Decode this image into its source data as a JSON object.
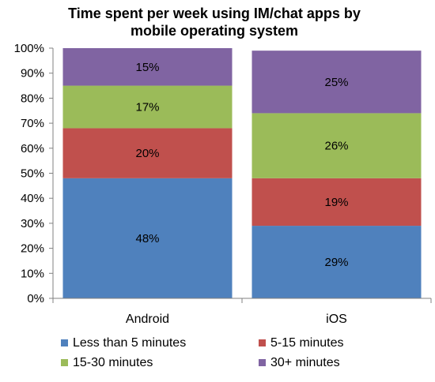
{
  "chart_data": {
    "type": "bar",
    "stacked": true,
    "title_lines": [
      "Time spent per week using IM/chat apps by",
      "mobile operating system"
    ],
    "categories": [
      "Android",
      "iOS"
    ],
    "y_tick_labels": [
      "0%",
      "10%",
      "20%",
      "30%",
      "40%",
      "50%",
      "60%",
      "70%",
      "80%",
      "90%",
      "100%"
    ],
    "ylim": [
      0,
      100
    ],
    "grid": false,
    "legend_position": "bottom",
    "series": [
      {
        "name": "Less than 5 minutes",
        "color": "#4F81BD",
        "values": [
          48,
          29
        ],
        "labels": [
          "48%",
          "29%"
        ]
      },
      {
        "name": "5-15 minutes",
        "color": "#C0504D",
        "values": [
          20,
          19
        ],
        "labels": [
          "20%",
          "19%"
        ]
      },
      {
        "name": "15-30 minutes",
        "color": "#9BBB59",
        "values": [
          17,
          26
        ],
        "labels": [
          "17%",
          "26%"
        ]
      },
      {
        "name": "30+ minutes",
        "color": "#8064A2",
        "values": [
          15,
          25
        ],
        "labels": [
          "15%",
          "25%"
        ]
      }
    ]
  }
}
